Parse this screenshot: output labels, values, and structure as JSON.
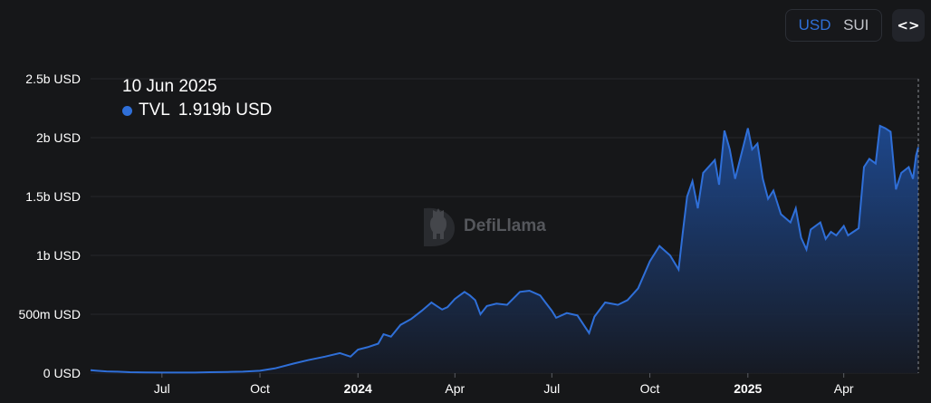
{
  "controls": {
    "currency_options": [
      "USD",
      "SUI"
    ],
    "active_currency": "USD",
    "embed_icon": "code-brackets-icon",
    "embed_glyph": "<>"
  },
  "tooltip": {
    "date": "10 Jun 2025",
    "series": "TVL",
    "value": "1.919b USD",
    "dot_color": "#2f6fd8"
  },
  "watermark": {
    "text": "DefiLlama",
    "icon": "llama-logo-icon"
  },
  "colors": {
    "line": "#2f6fd8",
    "area_top": "#1f4f9e",
    "area_bottom": "#161a24",
    "grid": "#25272c",
    "axis_text": "#ffffff",
    "background": "#161719"
  },
  "chart_data": {
    "type": "area",
    "series_name": "TVL",
    "unit": "USD",
    "x_range": [
      "2023-04-25",
      "2025-06-10"
    ],
    "y_range": [
      0,
      2500000000
    ],
    "y_ticks": [
      {
        "value": 0,
        "label": "0 USD"
      },
      {
        "value": 500000000,
        "label": "500m USD"
      },
      {
        "value": 1000000000,
        "label": "1b USD"
      },
      {
        "value": 1500000000,
        "label": "1.5b USD"
      },
      {
        "value": 2000000000,
        "label": "2b USD"
      },
      {
        "value": 2500000000,
        "label": "2.5b USD"
      }
    ],
    "x_ticks": [
      {
        "date": "2023-07-01",
        "label": "Jul",
        "bold": false
      },
      {
        "date": "2023-10-01",
        "label": "Oct",
        "bold": false
      },
      {
        "date": "2024-01-01",
        "label": "2024",
        "bold": true
      },
      {
        "date": "2024-04-01",
        "label": "Apr",
        "bold": false
      },
      {
        "date": "2024-07-01",
        "label": "Jul",
        "bold": false
      },
      {
        "date": "2024-10-01",
        "label": "Oct",
        "bold": false
      },
      {
        "date": "2025-01-01",
        "label": "2025",
        "bold": true
      },
      {
        "date": "2025-04-01",
        "label": "Apr",
        "bold": false
      }
    ],
    "grid": true,
    "crosshair_date": "2025-06-10",
    "points": [
      [
        "2023-04-25",
        25000000
      ],
      [
        "2023-05-01",
        20000000
      ],
      [
        "2023-05-10",
        15000000
      ],
      [
        "2023-05-20",
        12000000
      ],
      [
        "2023-06-01",
        8000000
      ],
      [
        "2023-06-15",
        6000000
      ],
      [
        "2023-07-01",
        5000000
      ],
      [
        "2023-08-01",
        5000000
      ],
      [
        "2023-08-15",
        8000000
      ],
      [
        "2023-09-01",
        10000000
      ],
      [
        "2023-09-15",
        12000000
      ],
      [
        "2023-10-01",
        20000000
      ],
      [
        "2023-10-15",
        40000000
      ],
      [
        "2023-11-01",
        80000000
      ],
      [
        "2023-11-15",
        110000000
      ],
      [
        "2023-12-01",
        140000000
      ],
      [
        "2023-12-15",
        170000000
      ],
      [
        "2023-12-25",
        140000000
      ],
      [
        "2024-01-01",
        200000000
      ],
      [
        "2024-01-10",
        220000000
      ],
      [
        "2024-01-20",
        250000000
      ],
      [
        "2024-01-25",
        330000000
      ],
      [
        "2024-02-01",
        310000000
      ],
      [
        "2024-02-10",
        410000000
      ],
      [
        "2024-02-20",
        460000000
      ],
      [
        "2024-03-01",
        530000000
      ],
      [
        "2024-03-10",
        600000000
      ],
      [
        "2024-03-15",
        570000000
      ],
      [
        "2024-03-20",
        540000000
      ],
      [
        "2024-03-25",
        560000000
      ],
      [
        "2024-04-01",
        630000000
      ],
      [
        "2024-04-10",
        690000000
      ],
      [
        "2024-04-15",
        660000000
      ],
      [
        "2024-04-20",
        620000000
      ],
      [
        "2024-04-25",
        500000000
      ],
      [
        "2024-05-01",
        570000000
      ],
      [
        "2024-05-10",
        590000000
      ],
      [
        "2024-05-20",
        580000000
      ],
      [
        "2024-06-01",
        690000000
      ],
      [
        "2024-06-10",
        700000000
      ],
      [
        "2024-06-20",
        660000000
      ],
      [
        "2024-06-25",
        600000000
      ],
      [
        "2024-07-01",
        530000000
      ],
      [
        "2024-07-05",
        470000000
      ],
      [
        "2024-07-15",
        510000000
      ],
      [
        "2024-07-25",
        490000000
      ],
      [
        "2024-08-05",
        340000000
      ],
      [
        "2024-08-10",
        480000000
      ],
      [
        "2024-08-20",
        600000000
      ],
      [
        "2024-09-01",
        580000000
      ],
      [
        "2024-09-10",
        620000000
      ],
      [
        "2024-09-20",
        720000000
      ],
      [
        "2024-10-01",
        950000000
      ],
      [
        "2024-10-10",
        1080000000
      ],
      [
        "2024-10-20",
        1000000000
      ],
      [
        "2024-10-28",
        880000000
      ],
      [
        "2024-11-01",
        1200000000
      ],
      [
        "2024-11-05",
        1500000000
      ],
      [
        "2024-11-10",
        1630000000
      ],
      [
        "2024-11-15",
        1400000000
      ],
      [
        "2024-11-20",
        1700000000
      ],
      [
        "2024-12-01",
        1810000000
      ],
      [
        "2024-12-05",
        1600000000
      ],
      [
        "2024-12-10",
        2060000000
      ],
      [
        "2024-12-15",
        1900000000
      ],
      [
        "2024-12-20",
        1650000000
      ],
      [
        "2025-01-01",
        2080000000
      ],
      [
        "2025-01-05",
        1900000000
      ],
      [
        "2025-01-10",
        1950000000
      ],
      [
        "2025-01-15",
        1650000000
      ],
      [
        "2025-01-20",
        1480000000
      ],
      [
        "2025-01-25",
        1550000000
      ],
      [
        "2025-02-01",
        1350000000
      ],
      [
        "2025-02-10",
        1280000000
      ],
      [
        "2025-02-15",
        1400000000
      ],
      [
        "2025-02-20",
        1150000000
      ],
      [
        "2025-02-25",
        1050000000
      ],
      [
        "2025-03-01",
        1220000000
      ],
      [
        "2025-03-10",
        1280000000
      ],
      [
        "2025-03-15",
        1140000000
      ],
      [
        "2025-03-20",
        1200000000
      ],
      [
        "2025-03-25",
        1170000000
      ],
      [
        "2025-04-01",
        1250000000
      ],
      [
        "2025-04-05",
        1170000000
      ],
      [
        "2025-04-10",
        1200000000
      ],
      [
        "2025-04-15",
        1230000000
      ],
      [
        "2025-04-20",
        1750000000
      ],
      [
        "2025-04-25",
        1820000000
      ],
      [
        "2025-05-01",
        1780000000
      ],
      [
        "2025-05-05",
        2100000000
      ],
      [
        "2025-05-10",
        2080000000
      ],
      [
        "2025-05-15",
        2050000000
      ],
      [
        "2025-05-20",
        1560000000
      ],
      [
        "2025-05-25",
        1700000000
      ],
      [
        "2025-06-01",
        1750000000
      ],
      [
        "2025-06-05",
        1650000000
      ],
      [
        "2025-06-08",
        1850000000
      ],
      [
        "2025-06-10",
        1919000000
      ]
    ]
  }
}
